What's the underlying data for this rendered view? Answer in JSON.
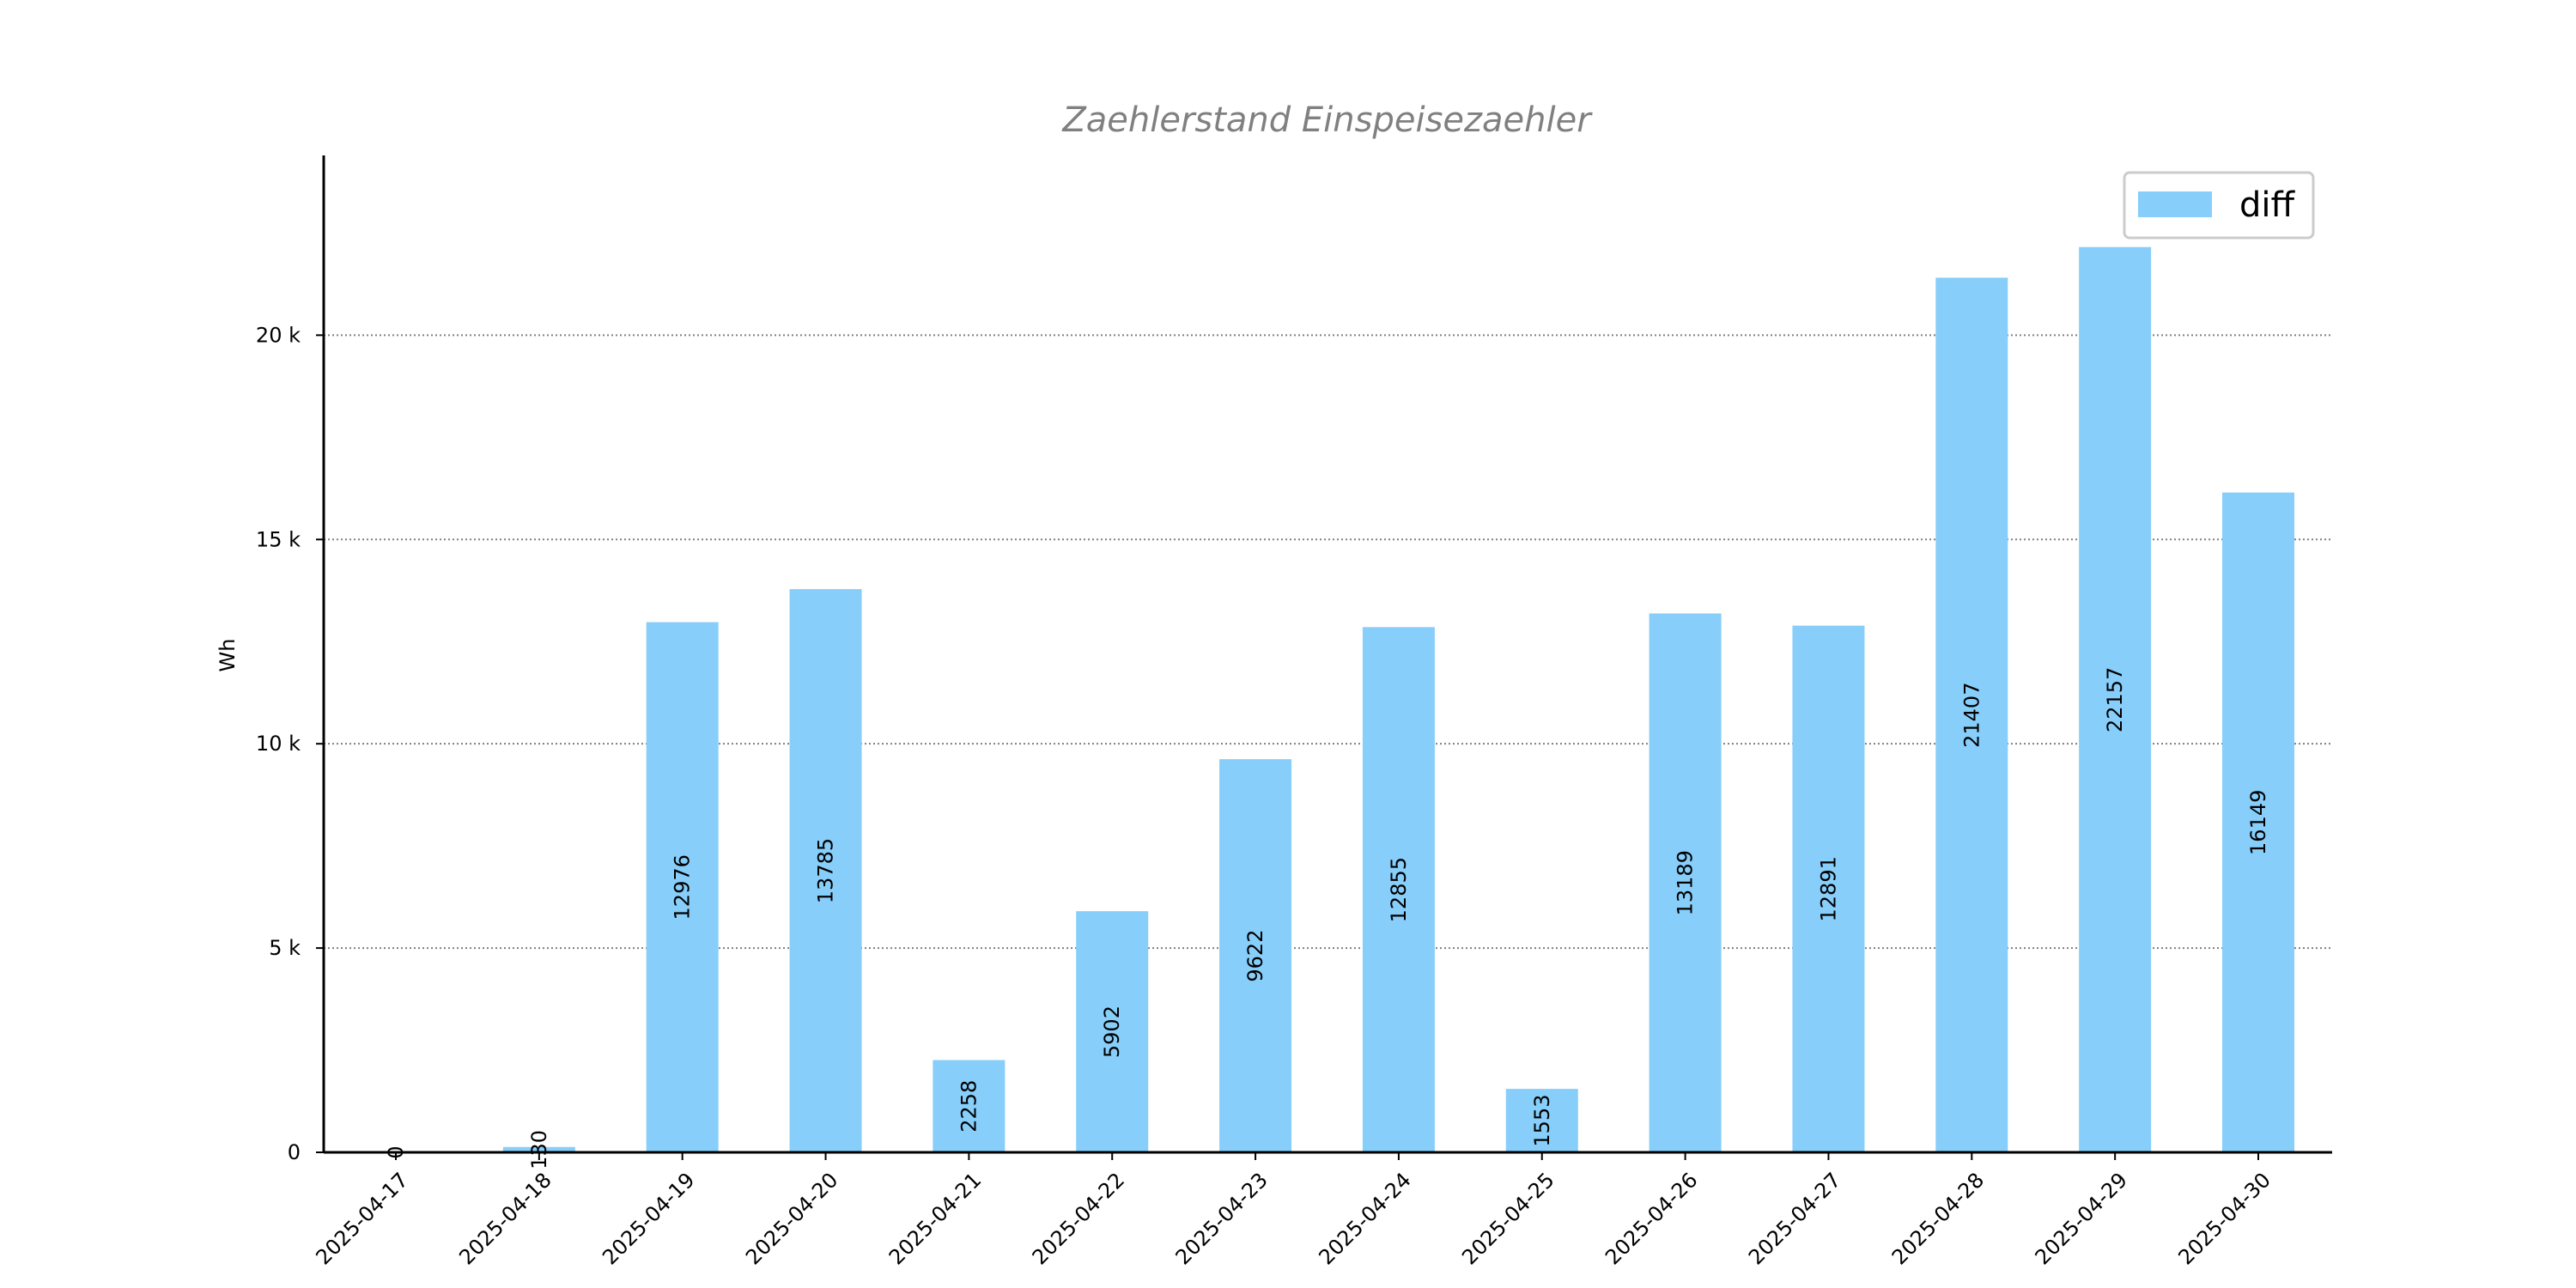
{
  "chart_data": {
    "type": "bar",
    "title": "Zaehlerstand Einspeisezaehler",
    "xlabel": "",
    "ylabel": "Wh",
    "categories": [
      "2025-04-17",
      "2025-04-18",
      "2025-04-19",
      "2025-04-20",
      "2025-04-21",
      "2025-04-22",
      "2025-04-23",
      "2025-04-24",
      "2025-04-25",
      "2025-04-26",
      "2025-04-27",
      "2025-04-28",
      "2025-04-29",
      "2025-04-30"
    ],
    "series": [
      {
        "name": "diff",
        "color": "#87cefa",
        "values": [
          0,
          130,
          12976,
          13785,
          2258,
          5902,
          9622,
          12855,
          1553,
          13189,
          12891,
          21407,
          22157,
          16149
        ]
      }
    ],
    "data_labels": [
      "0",
      "130",
      "12976",
      "13785",
      "2258",
      "5902",
      "9622",
      "12855",
      "1553",
      "13189",
      "12891",
      "21407",
      "22157",
      "16149"
    ],
    "y_ticks": [
      {
        "value": 0,
        "label": "0"
      },
      {
        "value": 5000,
        "label": "5 k"
      },
      {
        "value": 10000,
        "label": "10 k"
      },
      {
        "value": 15000,
        "label": "15 k"
      },
      {
        "value": 20000,
        "label": "20 k"
      }
    ],
    "ylim": [
      0,
      24400
    ],
    "grid": "horizontal dotted",
    "legend_position": "top-right"
  }
}
